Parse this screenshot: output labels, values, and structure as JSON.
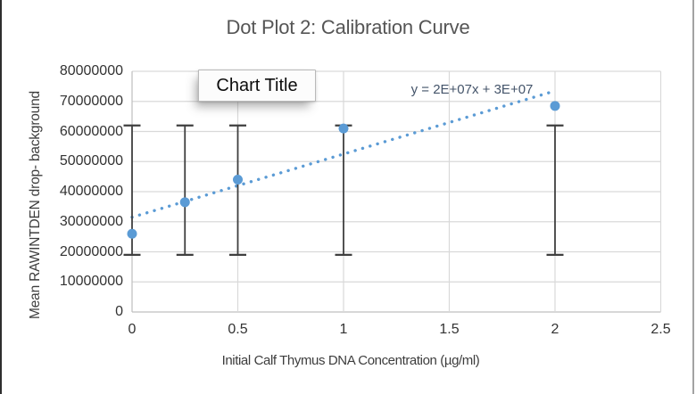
{
  "header": {
    "title": "Dot Plot 2: Calibration Curve"
  },
  "overlay": {
    "label": "Chart Title"
  },
  "axes": {
    "x_title": "Initial Calf Thymus DNA Concentration (µg/ml)",
    "y_title": "Mean RAWINTDEN drop- background"
  },
  "trendline": {
    "equation_label": "y = 2E+07x + 3E+07"
  },
  "chart_data": {
    "type": "scatter",
    "title": "Dot Plot 2: Calibration Curve",
    "overlay_text_box": "Chart Title",
    "xlabel": "Initial Calf Thymus DNA Concentration (µg/ml)",
    "ylabel": "Mean RAWINTDEN drop- background",
    "xlim": [
      0,
      2.5
    ],
    "ylim": [
      0,
      80000000
    ],
    "grid": true,
    "legend": "none",
    "x_ticks": {
      "values": [
        0,
        0.5,
        1,
        1.5,
        2,
        2.5
      ],
      "labels": [
        "0",
        "0.5",
        "1",
        "1.5",
        "2",
        "2.5"
      ]
    },
    "y_ticks": {
      "values": [
        0,
        10000000,
        20000000,
        30000000,
        40000000,
        50000000,
        60000000,
        70000000,
        80000000
      ],
      "labels": [
        "0",
        "10000000",
        "20000000",
        "30000000",
        "40000000",
        "50000000",
        "60000000",
        "70000000",
        "80000000"
      ]
    },
    "points": [
      {
        "x": 0,
        "y": 26000000
      },
      {
        "x": 0.25,
        "y": 36500000
      },
      {
        "x": 0.5,
        "y": 44000000
      },
      {
        "x": 1,
        "y": 61000000
      },
      {
        "x": 2,
        "y": 68500000
      }
    ],
    "error_bars": {
      "applies_to_each_point": true,
      "low": 19000000,
      "high": 62000000
    },
    "trendline": {
      "type": "linear",
      "style": "dotted",
      "slope": 21000000,
      "intercept": 31500000,
      "x_start": 0,
      "x_end": 1.97,
      "equation_label": "y = 2E+07x + 3E+07"
    },
    "colors": {
      "series": "#5B9BD5",
      "error_bar": "#3F3F3F",
      "gridline": "#D9D9D9",
      "axis_line": "#BFBFBF",
      "equation_text": "#44546A",
      "title_text": "#555555",
      "tick_text": "#333333"
    }
  }
}
